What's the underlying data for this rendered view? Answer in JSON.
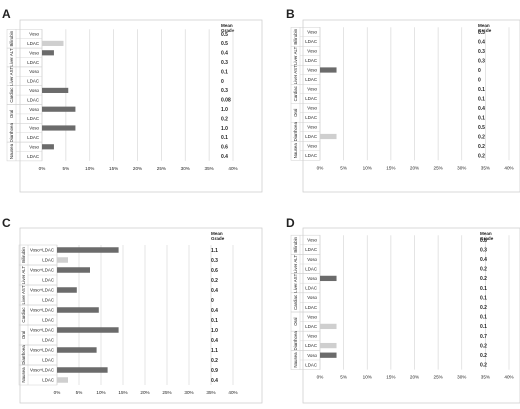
{
  "chart_data": [
    {
      "panel_letter": "A",
      "type": "bar",
      "orientation": "horizontal",
      "mean_grade_header": [
        "Mean",
        "Grade"
      ],
      "groups": [
        "Bilirubin",
        "Liver ALT",
        "Liver AST",
        "Cardiac",
        "Oral",
        "Diarrhoea",
        "Nausea"
      ],
      "row_labels": [
        "Voso",
        "LDAC",
        "Voso",
        "LDAC",
        "Voso",
        "LDAC",
        "Voso",
        "LDAC",
        "Voso",
        "LDAC",
        "Voso",
        "LDAC",
        "Voso",
        "LDAC"
      ],
      "values": [
        0,
        4.5,
        2.5,
        0,
        0,
        0,
        5.5,
        0,
        7.0,
        0,
        7.0,
        0,
        2.5,
        0
      ],
      "mean_grades": [
        "0.5",
        "0.5",
        "0.4",
        "0.3",
        "0.1",
        "0",
        "0.3",
        "0.08",
        "1.0",
        "0.2",
        "1.0",
        "0.1",
        "0.6",
        "0.4"
      ],
      "x_ticks": [
        "0%",
        "5%",
        "10%",
        "15%",
        "20%",
        "25%",
        "30%",
        "35%",
        "40%"
      ],
      "xlim": [
        0,
        40
      ],
      "grid": true
    },
    {
      "panel_letter": "B",
      "type": "bar",
      "orientation": "horizontal",
      "mean_grade_header": [
        "Mean",
        "Grade"
      ],
      "groups": [
        "Bilirubin",
        "Liver ALT",
        "Liver AST",
        "Cardiac",
        "Oral",
        "Diarrhoea",
        "Nausea"
      ],
      "row_labels": [
        "Voso",
        "LDAC",
        "Voso",
        "LDAC",
        "Voso",
        "LDAC",
        "Voso",
        "LDAC",
        "Voso",
        "LDAC",
        "Voso",
        "LDAC",
        "Voso",
        "LDAC"
      ],
      "values": [
        0,
        0,
        0,
        0,
        3.5,
        0,
        0,
        0,
        0,
        0,
        0,
        3.5,
        0,
        0
      ],
      "mean_grades": [
        "0.3",
        "0.4",
        "0.3",
        "0.3",
        "0",
        "0",
        "0.1",
        "0.1",
        "0.4",
        "0.1",
        "0.5",
        "0.2",
        "0.2",
        "0.2"
      ],
      "x_ticks": [
        "0%",
        "5%",
        "10%",
        "15%",
        "20%",
        "25%",
        "30%",
        "35%",
        "40%"
      ],
      "xlim": [
        0,
        40
      ],
      "grid": true
    },
    {
      "panel_letter": "C",
      "type": "bar",
      "orientation": "horizontal",
      "mean_grade_header": [
        "Mean",
        "Grade"
      ],
      "groups": [
        "Bilirubin",
        "Liver ALT",
        "Liver AST",
        "Cardiac",
        "Oral",
        "Diarrhoea",
        "Nausea"
      ],
      "row_labels": [
        "Voso+LDAC",
        "LDAC",
        "Voso+LDAC",
        "LDAC",
        "Voso+LDAC",
        "LDAC",
        "Voso+LDAC",
        "LDAC",
        "Voso+LDAC",
        "LDAC",
        "Voso+LDAC",
        "LDAC",
        "Voso+LDAC",
        "LDAC"
      ],
      "values": [
        14,
        2.5,
        7.5,
        0,
        4.5,
        0,
        9.5,
        0,
        14,
        0,
        9.0,
        0,
        11.5,
        2.5
      ],
      "mean_grades": [
        "1.1",
        "0.3",
        "0.6",
        "0.2",
        "0.4",
        "0",
        "0.4",
        "0.1",
        "1.0",
        "0.4",
        "1.1",
        "0.2",
        "0.9",
        "0.4"
      ],
      "x_ticks": [
        "0%",
        "5%",
        "10%",
        "15%",
        "20%",
        "25%",
        "30%",
        "35%",
        "40%"
      ],
      "xlim": [
        0,
        40
      ],
      "grid": true
    },
    {
      "panel_letter": "D",
      "type": "bar",
      "orientation": "horizontal",
      "mean_grade_header": [
        "Mean",
        "Grade"
      ],
      "groups": [
        "Bilirubin",
        "Liver ALT",
        "Liver AST",
        "Cardiac",
        "Oral",
        "Diarrhoea",
        "Nausea"
      ],
      "row_labels": [
        "Voso",
        "LDAC",
        "Voso",
        "LDAC",
        "Voso",
        "LDAC",
        "Voso",
        "LDAC",
        "Voso",
        "LDAC",
        "Voso",
        "LDAC",
        "Voso",
        "LDAC"
      ],
      "values": [
        0,
        0,
        0,
        0,
        3.5,
        0,
        0,
        0,
        0,
        3.5,
        0,
        3.5,
        3.5,
        0
      ],
      "mean_grades": [
        "0.8",
        "0.3",
        "0.4",
        "0.2",
        "0.2",
        "0.1",
        "0.1",
        "0.2",
        "0.1",
        "0.1",
        "0.7",
        "0.2",
        "0.2",
        "0.2"
      ],
      "x_ticks": [
        "0%",
        "5%",
        "10%",
        "15%",
        "20%",
        "25%",
        "30%",
        "35%",
        "40%"
      ],
      "xlim": [
        0,
        40
      ],
      "grid": true
    }
  ],
  "colors": {
    "voso_bar": "#6b6b6b",
    "ldac_bar": "#cfcfcf",
    "gridline": "#d9d9d9",
    "frame": "#d0d0d0",
    "text": "#222222"
  }
}
